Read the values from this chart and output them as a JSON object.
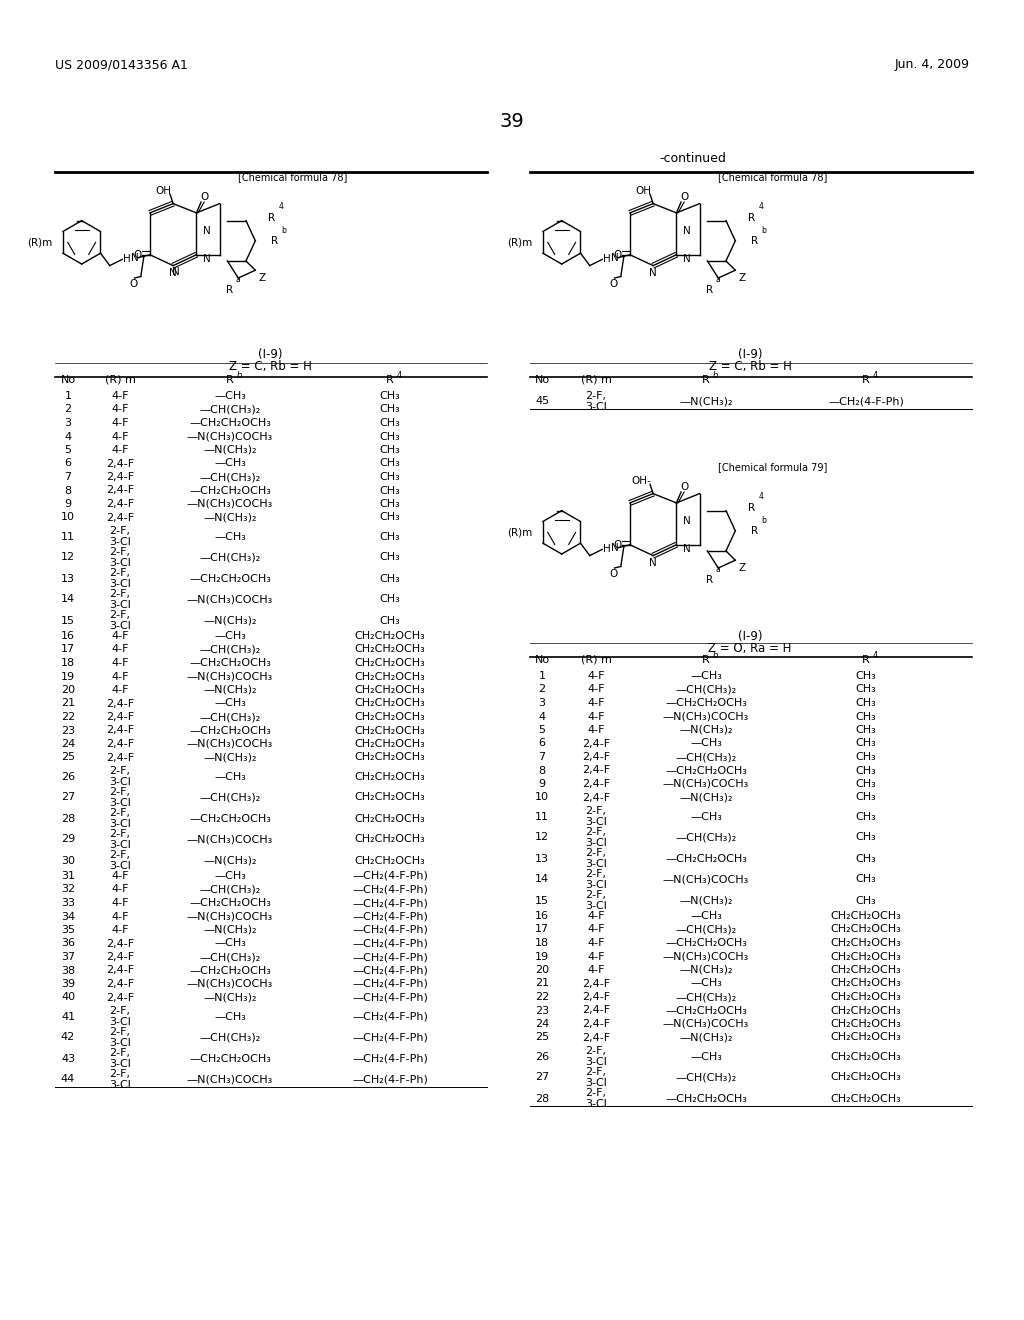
{
  "page_number": "39",
  "header_left": "US 2009/0143356 A1",
  "header_right": "Jun. 4, 2009",
  "continued_label": "-continued",
  "background_color": "#ffffff",
  "text_color": "#000000",
  "left_table_title1": "(I-9)",
  "left_table_title2": "Z = C, Rb = H",
  "right_table1_title1": "(I-9)",
  "right_table1_title2": "Z = C, Rb = H",
  "right_table2_title1": "(I-9)",
  "right_table2_title2": "Z = O, Ra = H",
  "left_chem_label": "[Chemical formula 78]",
  "right_chem_label1": "[Chemical formula 78]",
  "right_chem_label2": "[Chemical formula 79]",
  "left_table_data": [
    [
      "1",
      "4-F",
      "—CH₃",
      "CH₃"
    ],
    [
      "2",
      "4-F",
      "—CH(CH₃)₂",
      "CH₃"
    ],
    [
      "3",
      "4-F",
      "—CH₂CH₂OCH₃",
      "CH₃"
    ],
    [
      "4",
      "4-F",
      "—N(CH₃)COCH₃",
      "CH₃"
    ],
    [
      "5",
      "4-F",
      "—N(CH₃)₂",
      "CH₃"
    ],
    [
      "6",
      "2,4-F",
      "—CH₃",
      "CH₃"
    ],
    [
      "7",
      "2,4-F",
      "—CH(CH₃)₂",
      "CH₃"
    ],
    [
      "8",
      "2,4-F",
      "—CH₂CH₂OCH₃",
      "CH₃"
    ],
    [
      "9",
      "2,4-F",
      "—N(CH₃)COCH₃",
      "CH₃"
    ],
    [
      "10",
      "2,4-F",
      "—N(CH₃)₂",
      "CH₃"
    ],
    [
      "11",
      "2-F,\n3-Cl",
      "—CH₃",
      "CH₃"
    ],
    [
      "12",
      "2-F,\n3-Cl",
      "—CH(CH₃)₂",
      "CH₃"
    ],
    [
      "13",
      "2-F,\n3-Cl",
      "—CH₂CH₂OCH₃",
      "CH₃"
    ],
    [
      "14",
      "2-F,\n3-Cl",
      "—N(CH₃)COCH₃",
      "CH₃"
    ],
    [
      "15",
      "2-F,\n3-Cl",
      "—N(CH₃)₂",
      "CH₃"
    ],
    [
      "16",
      "4-F",
      "—CH₃",
      "CH₂CH₂OCH₃"
    ],
    [
      "17",
      "4-F",
      "—CH(CH₃)₂",
      "CH₂CH₂OCH₃"
    ],
    [
      "18",
      "4-F",
      "—CH₂CH₂OCH₃",
      "CH₂CH₂OCH₃"
    ],
    [
      "19",
      "4-F",
      "—N(CH₃)COCH₃",
      "CH₂CH₂OCH₃"
    ],
    [
      "20",
      "4-F",
      "—N(CH₃)₂",
      "CH₂CH₂OCH₃"
    ],
    [
      "21",
      "2,4-F",
      "—CH₃",
      "CH₂CH₂OCH₃"
    ],
    [
      "22",
      "2,4-F",
      "—CH(CH₃)₂",
      "CH₂CH₂OCH₃"
    ],
    [
      "23",
      "2,4-F",
      "—CH₂CH₂OCH₃",
      "CH₂CH₂OCH₃"
    ],
    [
      "24",
      "2,4-F",
      "—N(CH₃)COCH₃",
      "CH₂CH₂OCH₃"
    ],
    [
      "25",
      "2,4-F",
      "—N(CH₃)₂",
      "CH₂CH₂OCH₃"
    ],
    [
      "26",
      "2-F,\n3-Cl",
      "—CH₃",
      "CH₂CH₂OCH₃"
    ],
    [
      "27",
      "2-F,\n3-Cl",
      "—CH(CH₃)₂",
      "CH₂CH₂OCH₃"
    ],
    [
      "28",
      "2-F,\n3-Cl",
      "—CH₂CH₂OCH₃",
      "CH₂CH₂OCH₃"
    ],
    [
      "29",
      "2-F,\n3-Cl",
      "—N(CH₃)COCH₃",
      "CH₂CH₂OCH₃"
    ],
    [
      "30",
      "2-F,\n3-Cl",
      "—N(CH₃)₂",
      "CH₂CH₂OCH₃"
    ],
    [
      "31",
      "4-F",
      "—CH₃",
      "—CH₂(4-F-Ph)"
    ],
    [
      "32",
      "4-F",
      "—CH(CH₃)₂",
      "—CH₂(4-F-Ph)"
    ],
    [
      "33",
      "4-F",
      "—CH₂CH₂OCH₃",
      "—CH₂(4-F-Ph)"
    ],
    [
      "34",
      "4-F",
      "—N(CH₃)COCH₃",
      "—CH₂(4-F-Ph)"
    ],
    [
      "35",
      "4-F",
      "—N(CH₃)₂",
      "—CH₂(4-F-Ph)"
    ],
    [
      "36",
      "2,4-F",
      "—CH₃",
      "—CH₂(4-F-Ph)"
    ],
    [
      "37",
      "2,4-F",
      "—CH(CH₃)₂",
      "—CH₂(4-F-Ph)"
    ],
    [
      "38",
      "2,4-F",
      "—CH₂CH₂OCH₃",
      "—CH₂(4-F-Ph)"
    ],
    [
      "39",
      "2,4-F",
      "—N(CH₃)COCH₃",
      "—CH₂(4-F-Ph)"
    ],
    [
      "40",
      "2,4-F",
      "—N(CH₃)₂",
      "—CH₂(4-F-Ph)"
    ],
    [
      "41",
      "2-F,\n3-Cl",
      "—CH₃",
      "—CH₂(4-F-Ph)"
    ],
    [
      "42",
      "2-F,\n3-Cl",
      "—CH(CH₃)₂",
      "—CH₂(4-F-Ph)"
    ],
    [
      "43",
      "2-F,\n3-Cl",
      "—CH₂CH₂OCH₃",
      "—CH₂(4-F-Ph)"
    ],
    [
      "44",
      "2-F,\n3-Cl",
      "—N(CH₃)COCH₃",
      "—CH₂(4-F-Ph)"
    ]
  ],
  "right_table1_data": [
    [
      "45",
      "2-F,\n3-Cl",
      "—N(CH₃)₂",
      "—CH₂(4-F-Ph)"
    ]
  ],
  "right_table2_data": [
    [
      "1",
      "4-F",
      "—CH₃",
      "CH₃"
    ],
    [
      "2",
      "4-F",
      "—CH(CH₃)₂",
      "CH₃"
    ],
    [
      "3",
      "4-F",
      "—CH₂CH₂OCH₃",
      "CH₃"
    ],
    [
      "4",
      "4-F",
      "—N(CH₃)COCH₃",
      "CH₃"
    ],
    [
      "5",
      "4-F",
      "—N(CH₃)₂",
      "CH₃"
    ],
    [
      "6",
      "2,4-F",
      "—CH₃",
      "CH₃"
    ],
    [
      "7",
      "2,4-F",
      "—CH(CH₃)₂",
      "CH₃"
    ],
    [
      "8",
      "2,4-F",
      "—CH₂CH₂OCH₃",
      "CH₃"
    ],
    [
      "9",
      "2,4-F",
      "—N(CH₃)COCH₃",
      "CH₃"
    ],
    [
      "10",
      "2,4-F",
      "—N(CH₃)₂",
      "CH₃"
    ],
    [
      "11",
      "2-F,\n3-Cl",
      "—CH₃",
      "CH₃"
    ],
    [
      "12",
      "2-F,\n3-Cl",
      "—CH(CH₃)₂",
      "CH₃"
    ],
    [
      "13",
      "2-F,\n3-Cl",
      "—CH₂CH₂OCH₃",
      "CH₃"
    ],
    [
      "14",
      "2-F,\n3-Cl",
      "—N(CH₃)COCH₃",
      "CH₃"
    ],
    [
      "15",
      "2-F,\n3-Cl",
      "—N(CH₃)₂",
      "CH₃"
    ],
    [
      "16",
      "4-F",
      "—CH₃",
      "CH₂CH₂OCH₃"
    ],
    [
      "17",
      "4-F",
      "—CH(CH₃)₂",
      "CH₂CH₂OCH₃"
    ],
    [
      "18",
      "4-F",
      "—CH₂CH₂OCH₃",
      "CH₂CH₂OCH₃"
    ],
    [
      "19",
      "4-F",
      "—N(CH₃)COCH₃",
      "CH₂CH₂OCH₃"
    ],
    [
      "20",
      "4-F",
      "—N(CH₃)₂",
      "CH₂CH₂OCH₃"
    ],
    [
      "21",
      "2,4-F",
      "—CH₃",
      "CH₂CH₂OCH₃"
    ],
    [
      "22",
      "2,4-F",
      "—CH(CH₃)₂",
      "CH₂CH₂OCH₃"
    ],
    [
      "23",
      "2,4-F",
      "—CH₂CH₂OCH₃",
      "CH₂CH₂OCH₃"
    ],
    [
      "24",
      "2,4-F",
      "—N(CH₃)COCH₃",
      "CH₂CH₂OCH₃"
    ],
    [
      "25",
      "2,4-F",
      "—N(CH₃)₂",
      "CH₂CH₂OCH₃"
    ],
    [
      "26",
      "2-F,\n3-Cl",
      "—CH₃",
      "CH₂CH₂OCH₃"
    ],
    [
      "27",
      "2-F,\n3-Cl",
      "—CH(CH₃)₂",
      "CH₂CH₂OCH₃"
    ],
    [
      "28",
      "2-F,\n3-Cl",
      "—CH₂CH₂OCH₃",
      "CH₂CH₂OCH₃"
    ]
  ]
}
